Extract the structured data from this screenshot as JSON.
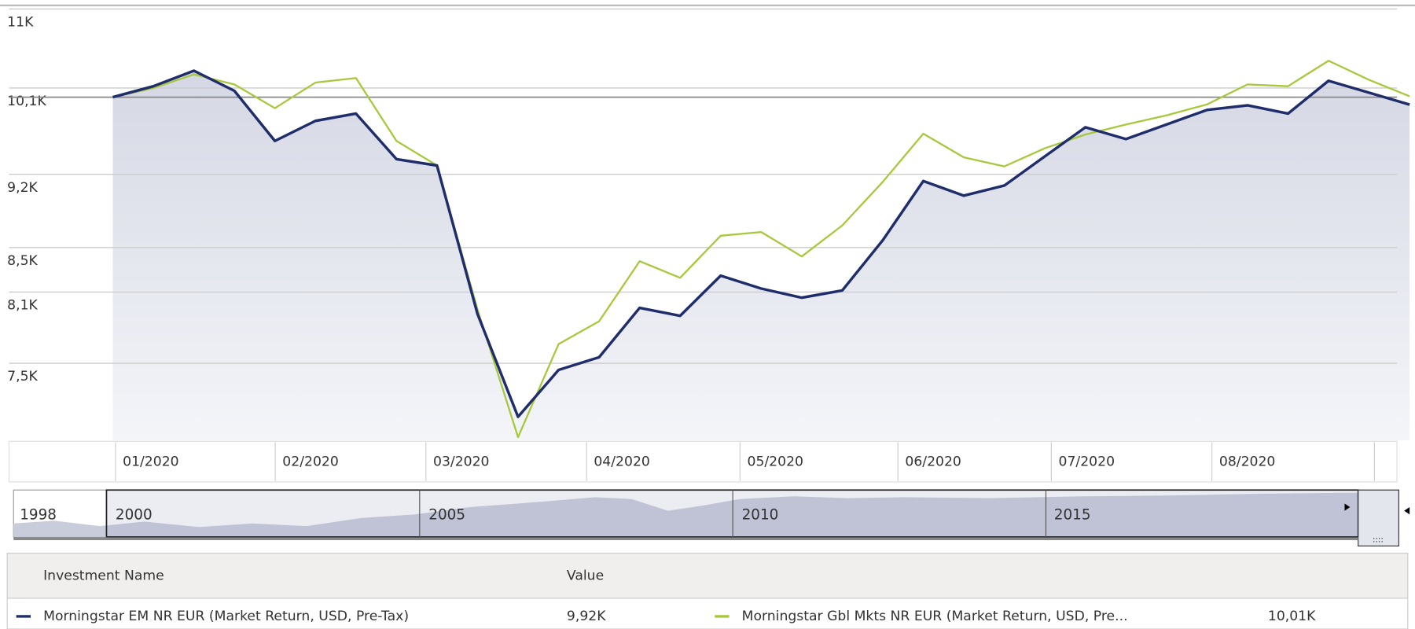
{
  "chart_data": {
    "type": "line",
    "log_scale": true,
    "grid": true,
    "baseline": 10000,
    "ylim": [
      6900,
      11000
    ],
    "yticks": [
      {
        "value": 11000,
        "label": "11K"
      },
      {
        "value": 10100,
        "label": "10,1K"
      },
      {
        "value": 9200,
        "label": "9,2K"
      },
      {
        "value": 8500,
        "label": "8,5K"
      },
      {
        "value": 8100,
        "label": "8,1K"
      },
      {
        "value": 7500,
        "label": "7,5K"
      }
    ],
    "x_labels": [
      "01/2020",
      "02/2020",
      "03/2020",
      "04/2020",
      "05/2020",
      "06/2020",
      "07/2020",
      "08/2020"
    ],
    "series": [
      {
        "name": "Morningstar EM NR EUR (Market Return, USD, Pre-Tax)",
        "color": "#1f2d6b",
        "legend_value": "9,92K",
        "area": true,
        "values": [
          10000,
          10119,
          10290,
          10069,
          9538,
          9747,
          9824,
          9352,
          9288,
          7910,
          7078,
          7446,
          7549,
          7963,
          7895,
          8245,
          8131,
          8051,
          8114,
          8567,
          9133,
          8990,
          9089,
          9380,
          9680,
          9557,
          9709,
          9863,
          9912,
          9824,
          10179,
          10049,
          9920
        ]
      },
      {
        "name": "Morningstar Gbl Mkts NR EUR (Market Return, USD, Pre...",
        "color": "#a8c83c",
        "legend_value": "10,01K",
        "area": false,
        "values": [
          10000,
          10099,
          10249,
          10139,
          9882,
          10159,
          10209,
          9538,
          9288,
          7949,
          6924,
          7657,
          7848,
          8375,
          8226,
          8609,
          8643,
          8418,
          8705,
          9125,
          9613,
          9370,
          9279,
          9463,
          9604,
          9709,
          9805,
          9922,
          10139,
          10119,
          10402,
          10189,
          10010
        ]
      }
    ],
    "navigator": {
      "labels": [
        "1998",
        "2000",
        "2005",
        "2010",
        "2015"
      ]
    },
    "legend": {
      "headers": [
        "Investment Name",
        "Value"
      ]
    }
  }
}
